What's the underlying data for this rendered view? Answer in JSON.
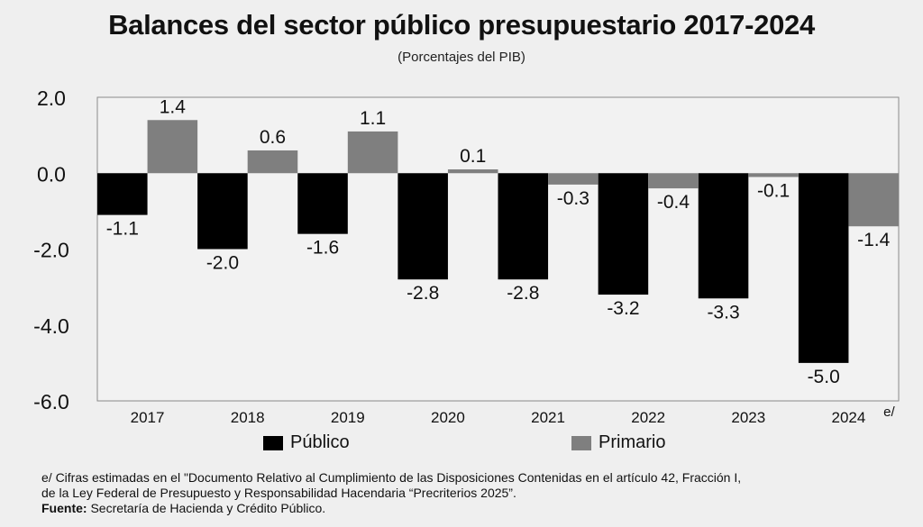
{
  "colors": {
    "publico": "#000000",
    "primario": "#7f7f7f",
    "plot_bg": "#f2f2f2",
    "page_bg": "#efefef",
    "border": "#8a8a8a"
  },
  "legend": {
    "publico": "Público",
    "primario": "Primario"
  },
  "footnote": {
    "line1": "e/ Cifras estimadas en el \"Documento Relativo al Cumplimiento de las Disposiciones Contenidas en el artículo 42, Fracción I,",
    "line2": "de la Ley Federal de Presupuesto y Responsabilidad Hacendaria “Precriterios 2025”.",
    "source_label": "Fuente:",
    "source_text": " Secretaría de Hacienda y Crédito Público."
  },
  "chart_data": {
    "type": "bar",
    "title": "Balances del sector público presupuestario 2017-2024",
    "subtitle": "(Porcentajes del PIB)",
    "categories": [
      "2017",
      "2018",
      "2019",
      "2020",
      "2021",
      "2022",
      "2023",
      "2024"
    ],
    "last_category_note": "e/",
    "series": [
      {
        "name": "Público",
        "values": [
          -1.1,
          -2.0,
          -1.6,
          -2.8,
          -2.8,
          -3.2,
          -3.3,
          -5.0
        ]
      },
      {
        "name": "Primario",
        "values": [
          1.4,
          0.6,
          1.1,
          0.1,
          -0.3,
          -0.4,
          -0.1,
          -1.4
        ]
      }
    ],
    "ylim": [
      -6.0,
      2.0
    ],
    "yticks": [
      2.0,
      0.0,
      -2.0,
      -4.0,
      -6.0
    ],
    "ytick_labels": [
      "2.0",
      "0.0",
      "-2.0",
      "-4.0",
      "-6.0"
    ],
    "xlabel": "",
    "ylabel": "",
    "legend_position": "bottom"
  }
}
